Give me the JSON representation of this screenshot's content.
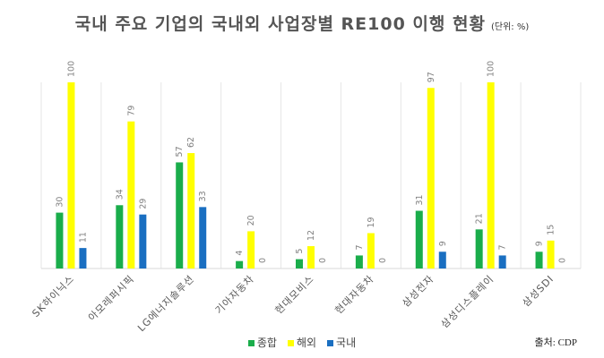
{
  "chart_data": {
    "type": "bar",
    "title": "국내 주요 기업의 국내외 사업장별 RE100 이행 현황",
    "unit_note": "(단위: %)",
    "categories": [
      "SK하이닉스",
      "아모레퍼시픽",
      "LG에너지솔루션",
      "기아자동차",
      "현대모비스",
      "현대자동차",
      "삼성전자",
      "삼성디스플레이",
      "삼성SDI"
    ],
    "series": [
      {
        "name": "종합",
        "color": "#1aad4b",
        "values": [
          30,
          34,
          57,
          4,
          5,
          7,
          31,
          21,
          9
        ]
      },
      {
        "name": "해외",
        "color": "#ffff00",
        "values": [
          100,
          79,
          62,
          20,
          12,
          19,
          97,
          100,
          15
        ]
      },
      {
        "name": "국내",
        "color": "#1a6fc1",
        "values": [
          11,
          29,
          33,
          0,
          0,
          0,
          9,
          7,
          0
        ]
      }
    ],
    "ylim": [
      0,
      100
    ],
    "grid": false,
    "legend": "bottom",
    "source": "출처: CDP"
  }
}
